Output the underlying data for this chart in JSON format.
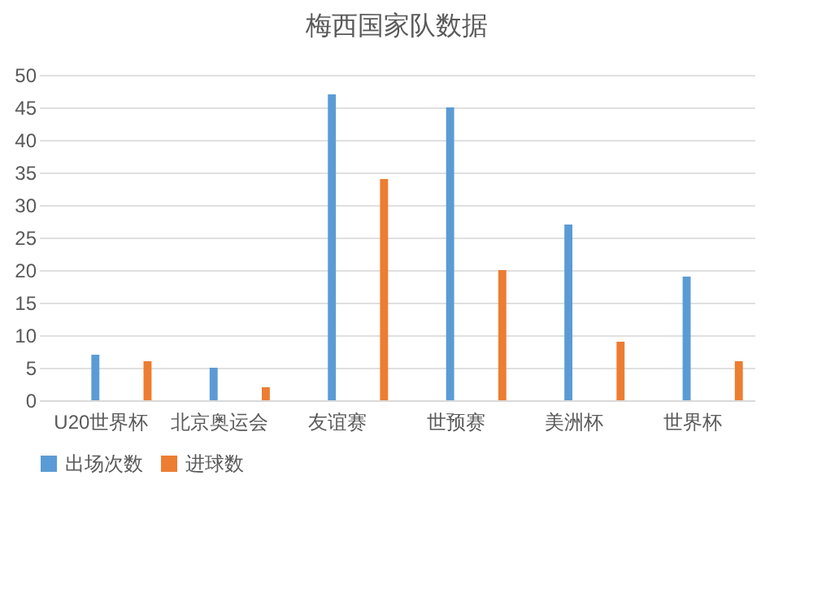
{
  "chart_data": {
    "type": "bar",
    "title": "梅西国家队数据",
    "categories": [
      "U20世界杯",
      "北京奥运会",
      "友谊赛",
      "世预赛",
      "美洲杯",
      "世界杯"
    ],
    "series": [
      {
        "name": "出场次数",
        "color": "#5b9bd5",
        "values": [
          7,
          5,
          47,
          45,
          27,
          19
        ]
      },
      {
        "name": "进球数",
        "color": "#ed7d31",
        "values": [
          6,
          2,
          34,
          20,
          9,
          6
        ]
      }
    ],
    "ylim": [
      0,
      50
    ],
    "yticks": [
      0,
      5,
      10,
      15,
      20,
      25,
      30,
      35,
      40,
      45,
      50
    ],
    "grid": "y",
    "legend": "bottom"
  }
}
